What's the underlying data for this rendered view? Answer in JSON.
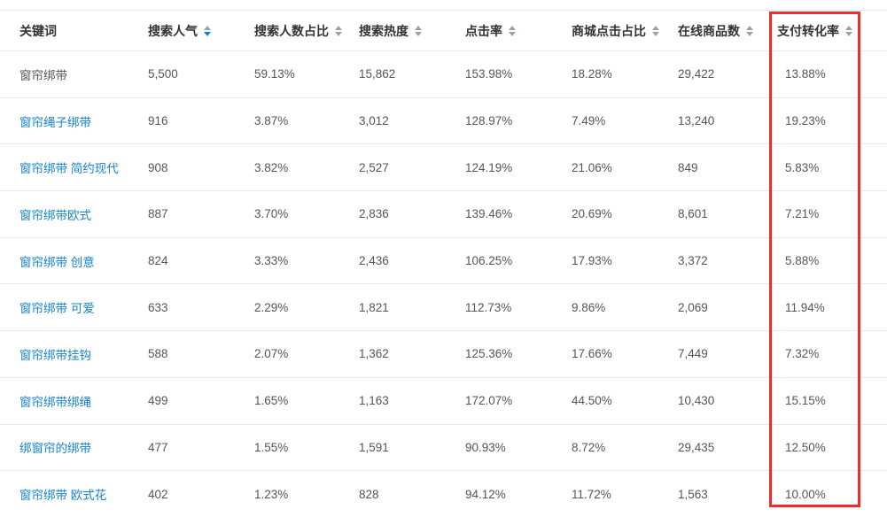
{
  "accent_colors": {
    "link_blue": "#1583c7",
    "sort_inactive_gray": "#9aa3ab",
    "highlight_red": "#ed2d2d",
    "header_text": "#333333",
    "cell_text": "#555555"
  },
  "table": {
    "columns": [
      {
        "key": "keyword",
        "label": "关键词",
        "sortable": false,
        "sort": ""
      },
      {
        "key": "search_popularity",
        "label": "搜索人气",
        "sortable": true,
        "sort": "desc"
      },
      {
        "key": "search_ratio",
        "label": "搜索人数占比",
        "sortable": true,
        "sort": ""
      },
      {
        "key": "search_heat",
        "label": "搜索热度",
        "sortable": true,
        "sort": ""
      },
      {
        "key": "ctr",
        "label": "点击率",
        "sortable": true,
        "sort": ""
      },
      {
        "key": "mall_ctr",
        "label": "商城点击占比",
        "sortable": true,
        "sort": ""
      },
      {
        "key": "online_products",
        "label": "在线商品数",
        "sortable": true,
        "sort": ""
      },
      {
        "key": "conversion",
        "label": "支付转化率",
        "sortable": true,
        "sort": "",
        "highlighted": true
      }
    ],
    "rows": [
      {
        "keyword": "窗帘绑带",
        "is_link": false,
        "search_popularity": "5,500",
        "search_ratio": "59.13%",
        "search_heat": "15,862",
        "ctr": "153.98%",
        "mall_ctr": "18.28%",
        "online_products": "29,422",
        "conversion": "13.88%"
      },
      {
        "keyword": "窗帘绳子绑带",
        "is_link": true,
        "search_popularity": "916",
        "search_ratio": "3.87%",
        "search_heat": "3,012",
        "ctr": "128.97%",
        "mall_ctr": "7.49%",
        "online_products": "13,240",
        "conversion": "19.23%"
      },
      {
        "keyword": "窗帘绑带 简约现代",
        "is_link": true,
        "search_popularity": "908",
        "search_ratio": "3.82%",
        "search_heat": "2,527",
        "ctr": "124.19%",
        "mall_ctr": "21.06%",
        "online_products": "849",
        "conversion": "5.83%"
      },
      {
        "keyword": "窗帘绑带欧式",
        "is_link": true,
        "search_popularity": "887",
        "search_ratio": "3.70%",
        "search_heat": "2,836",
        "ctr": "139.46%",
        "mall_ctr": "20.69%",
        "online_products": "8,601",
        "conversion": "7.21%"
      },
      {
        "keyword": "窗帘绑带 创意",
        "is_link": true,
        "search_popularity": "824",
        "search_ratio": "3.33%",
        "search_heat": "2,436",
        "ctr": "106.25%",
        "mall_ctr": "17.93%",
        "online_products": "3,372",
        "conversion": "5.88%"
      },
      {
        "keyword": "窗帘绑带 可爱",
        "is_link": true,
        "search_popularity": "633",
        "search_ratio": "2.29%",
        "search_heat": "1,821",
        "ctr": "112.73%",
        "mall_ctr": "9.86%",
        "online_products": "2,069",
        "conversion": "11.94%"
      },
      {
        "keyword": "窗帘绑带挂钩",
        "is_link": true,
        "search_popularity": "588",
        "search_ratio": "2.07%",
        "search_heat": "1,362",
        "ctr": "125.36%",
        "mall_ctr": "17.66%",
        "online_products": "7,449",
        "conversion": "7.32%"
      },
      {
        "keyword": "窗帘绑带绑绳",
        "is_link": true,
        "search_popularity": "499",
        "search_ratio": "1.65%",
        "search_heat": "1,163",
        "ctr": "172.07%",
        "mall_ctr": "44.50%",
        "online_products": "10,430",
        "conversion": "15.15%"
      },
      {
        "keyword": "绑窗帘的绑带",
        "is_link": true,
        "search_popularity": "477",
        "search_ratio": "1.55%",
        "search_heat": "1,591",
        "ctr": "90.93%",
        "mall_ctr": "8.72%",
        "online_products": "29,435",
        "conversion": "12.50%"
      },
      {
        "keyword": "窗帘绑带 欧式花",
        "is_link": true,
        "search_popularity": "402",
        "search_ratio": "1.23%",
        "search_heat": "828",
        "ctr": "94.12%",
        "mall_ctr": "11.72%",
        "online_products": "1,563",
        "conversion": "10.00%"
      }
    ]
  }
}
